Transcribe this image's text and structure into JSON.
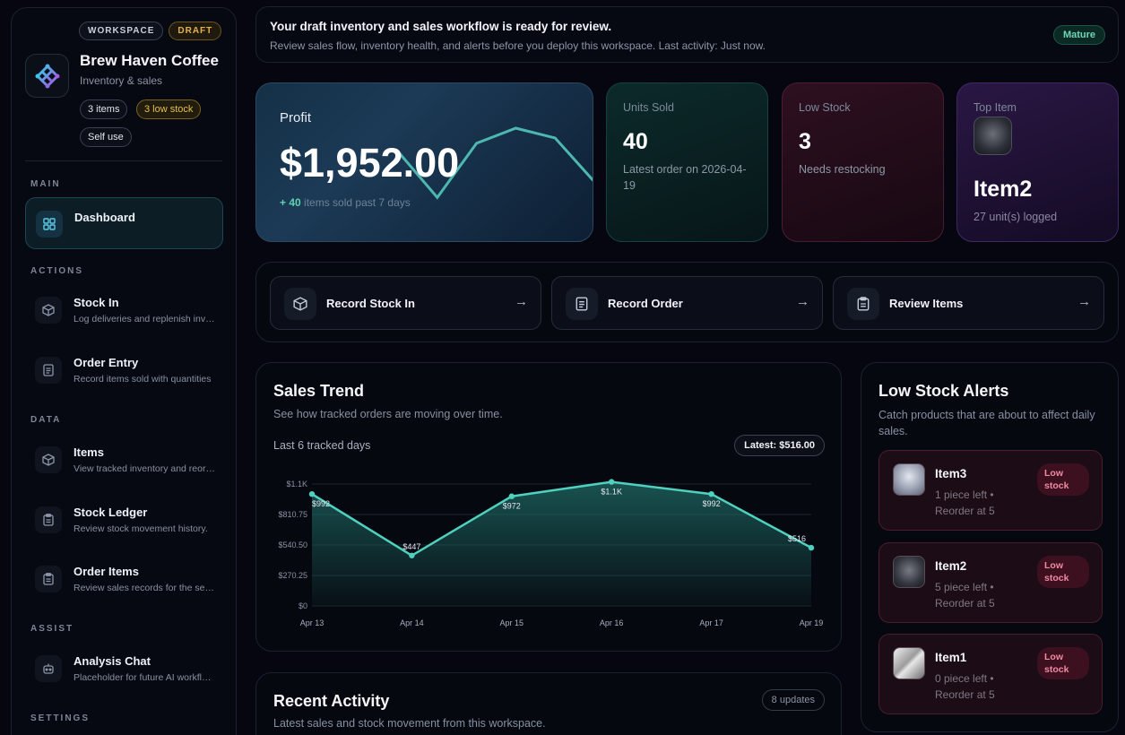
{
  "sidebar": {
    "badges": {
      "workspace": "WORKSPACE",
      "draft": "DRAFT"
    },
    "brand": {
      "name": "Brew Haven Coffee",
      "subtitle": "Inventory & sales"
    },
    "tags": {
      "items": "3 items",
      "low_stock": "3 low stock",
      "self_use": "Self use"
    },
    "sections": {
      "main": "MAIN",
      "actions": "ACTIONS",
      "data": "DATA",
      "assist": "ASSIST",
      "settings": "SETTINGS"
    },
    "nav": [
      {
        "title": "Dashboard",
        "subtitle": "",
        "icon": "grid-icon"
      },
      {
        "title": "Stock In",
        "subtitle": "Log deliveries and replenish inventory",
        "icon": "box-in-icon"
      },
      {
        "title": "Order Entry",
        "subtitle": "Record items sold with quantities",
        "icon": "document-icon"
      },
      {
        "title": "Items",
        "subtitle": "View tracked inventory and reorder levels",
        "icon": "cube-icon"
      },
      {
        "title": "Stock Ledger",
        "subtitle": "Review stock movement history.",
        "icon": "clipboard-icon"
      },
      {
        "title": "Order Items",
        "subtitle": "Review sales records for the selected period",
        "icon": "clipboard-icon"
      },
      {
        "title": "Analysis Chat",
        "subtitle": "Placeholder for future AI workflows",
        "icon": "robot-icon"
      }
    ]
  },
  "banner": {
    "title": "Your draft inventory and sales workflow is ready for review.",
    "text": "Review sales flow, inventory health, and alerts before you deploy this workspace. Last activity: Just now.",
    "status": "Mature"
  },
  "metrics": {
    "profit": {
      "label": "Profit",
      "value": "$1,952.00",
      "delta": "+ 40",
      "delta_text": " items sold past 7 days"
    },
    "units_sold": {
      "label": "Units Sold",
      "value": "40",
      "detail": "Latest order on 2026-04-19"
    },
    "low_stock": {
      "label": "Low Stock",
      "value": "3",
      "detail": "Needs restocking"
    },
    "top_item": {
      "label": "Top Item",
      "name": "Item2",
      "detail": "27 unit(s) logged"
    }
  },
  "quick_actions": [
    {
      "label": "Record Stock In",
      "icon": "box-in-icon"
    },
    {
      "label": "Record Order",
      "icon": "document-icon"
    },
    {
      "label": "Review Items",
      "icon": "clipboard-icon"
    }
  ],
  "sales_trend": {
    "title": "Sales Trend",
    "subtitle": "See how tracked orders are moving over time.",
    "range_label": "Last 6 tracked days",
    "latest": "Latest: $516.00"
  },
  "chart_data": {
    "type": "area",
    "categories": [
      "Apr 13",
      "Apr 14",
      "Apr 15",
      "Apr 16",
      "Apr 17",
      "Apr 19"
    ],
    "values": [
      992,
      447,
      972,
      1100,
      992,
      516
    ],
    "data_labels": [
      "$992",
      "$447",
      "$972",
      "$1.1K",
      "$992",
      "$516"
    ],
    "y_ticks": [
      "$0",
      "$270.25",
      "$540.50",
      "$810.75",
      "$1.1K"
    ],
    "ylim": [
      0,
      1081
    ],
    "grid": true,
    "colors": {
      "line": "#4fd1c0",
      "fill": "#1f6b66"
    }
  },
  "profit_sparkline": [
    820,
    210,
    930,
    1130,
    1000,
    420
  ],
  "recent_activity": {
    "title": "Recent Activity",
    "subtitle": "Latest sales and stock movement from this workspace.",
    "count": "8 updates"
  },
  "low_stock_alerts": {
    "title": "Low Stock Alerts",
    "subtitle": "Catch products that are about to affect daily sales.",
    "items": [
      {
        "name": "Item3",
        "left": "1 piece left •",
        "reorder": "Reorder at 5",
        "badge": "Low stock"
      },
      {
        "name": "Item2",
        "left": "5 piece left •",
        "reorder": "Reorder at 5",
        "badge": "Low stock"
      },
      {
        "name": "Item1",
        "left": "0 piece left •",
        "reorder": "Reorder at 5",
        "badge": "Low stock"
      }
    ]
  }
}
